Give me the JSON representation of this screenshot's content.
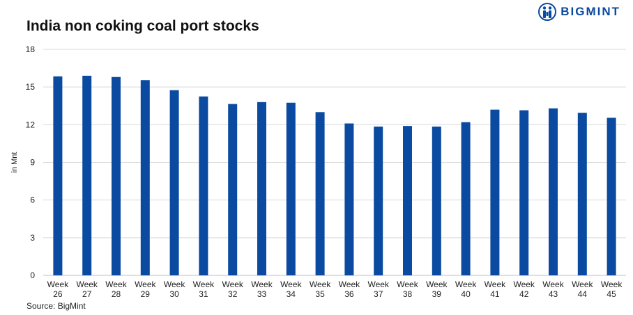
{
  "header": {
    "title": "India non coking coal port stocks",
    "logo_text": "BIGMINT"
  },
  "footer": {
    "source": "Source: BigMint"
  },
  "colors": {
    "bar": "#0a4aa0",
    "grid": "#d9d9d9",
    "logo": "#0a4aa0"
  },
  "chart_data": {
    "type": "bar",
    "title": "India non coking coal port stocks",
    "ylabel": "in Mnt",
    "xlabel": "",
    "ylim": [
      0,
      18
    ],
    "yticks": [
      0,
      3,
      6,
      9,
      12,
      15,
      18
    ],
    "grid": true,
    "categories": [
      [
        "Week",
        "26"
      ],
      [
        "Week",
        "27"
      ],
      [
        "Week",
        "28"
      ],
      [
        "Week",
        "29"
      ],
      [
        "Week",
        "30"
      ],
      [
        "Week",
        "31"
      ],
      [
        "Week",
        "32"
      ],
      [
        "Week",
        "33"
      ],
      [
        "Week",
        "34"
      ],
      [
        "Week",
        "35"
      ],
      [
        "Week",
        "36"
      ],
      [
        "Week",
        "37"
      ],
      [
        "Week",
        "38"
      ],
      [
        "Week",
        "39"
      ],
      [
        "Week",
        "40"
      ],
      [
        "Week",
        "41"
      ],
      [
        "Week",
        "42"
      ],
      [
        "Week",
        "43"
      ],
      [
        "Week",
        "44"
      ],
      [
        "Week",
        "45"
      ]
    ],
    "values": [
      15.85,
      15.9,
      15.8,
      15.55,
      14.75,
      14.25,
      13.65,
      13.8,
      13.75,
      13.0,
      12.1,
      11.85,
      11.9,
      11.85,
      12.2,
      13.2,
      13.15,
      13.3,
      12.95,
      12.55
    ]
  }
}
